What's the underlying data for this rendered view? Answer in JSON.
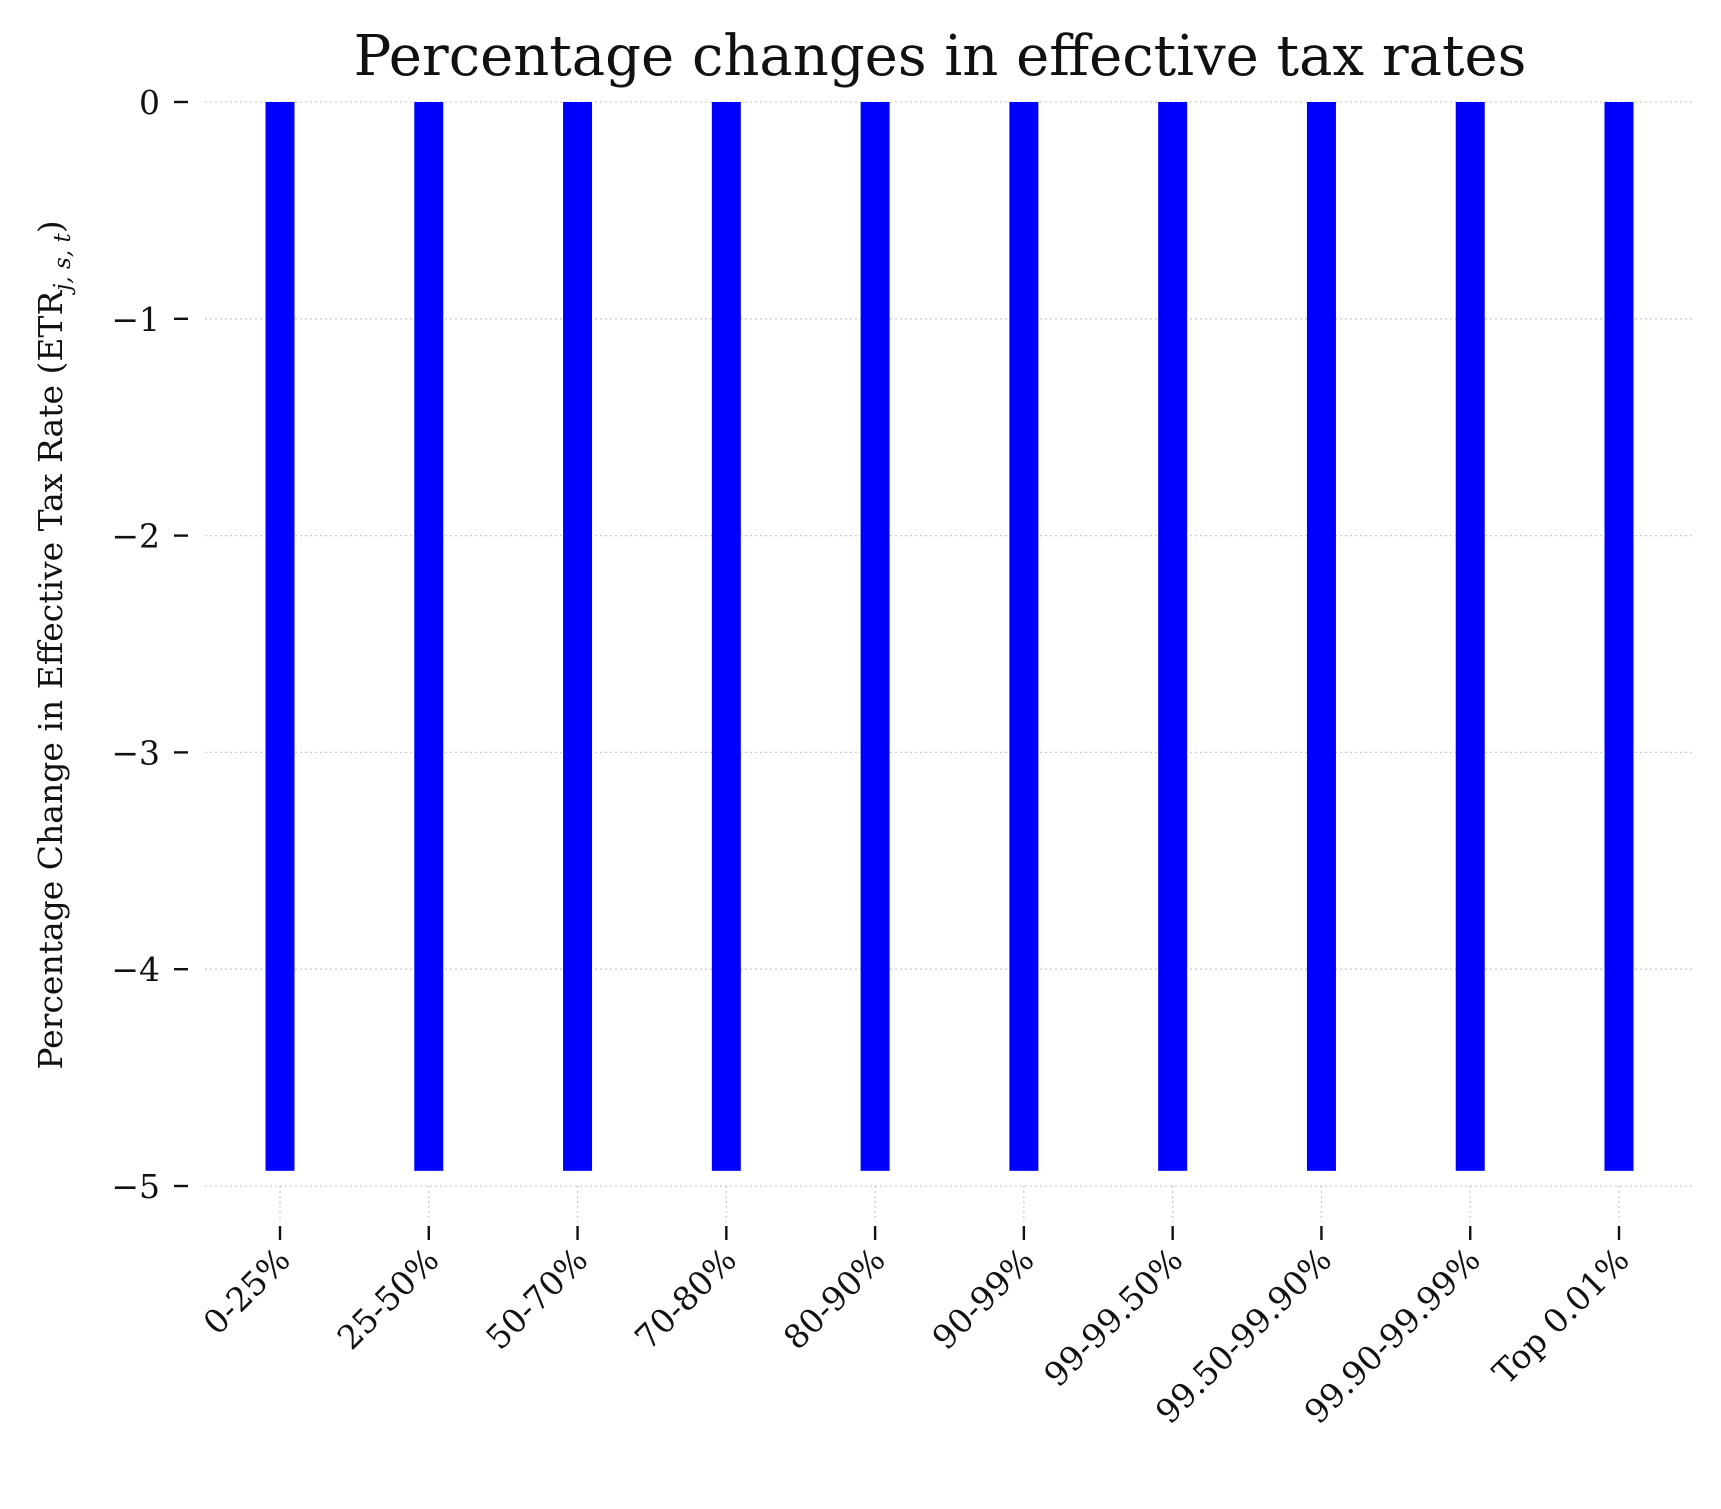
{
  "chart_data": {
    "type": "bar",
    "title": "Percentage changes in effective tax rates",
    "xlabel": "",
    "ylabel": "Percentage Change in Effective Tax Rate (ETR",
    "ylabel_subscript": "j, s, t",
    "ylabel_suffix": ")",
    "categories": [
      "0-25%",
      "25-50%",
      "50-70%",
      "70-80%",
      "80-90%",
      "90-99%",
      "99-99.50%",
      "99.50-99.90%",
      "99.90-99.99%",
      "Top 0.01%"
    ],
    "values": [
      -4.93,
      -4.93,
      -4.93,
      -4.93,
      -4.93,
      -4.93,
      -4.93,
      -4.93,
      -4.93,
      -4.93
    ],
    "ylim": [
      -5,
      0
    ],
    "yticks": [
      0,
      -1,
      -2,
      -3,
      -4,
      -5
    ],
    "ytick_labels": [
      "0",
      "−1",
      "−2",
      "−3",
      "−4",
      "−5"
    ],
    "grid": true,
    "bar_color": "#0000ff"
  }
}
